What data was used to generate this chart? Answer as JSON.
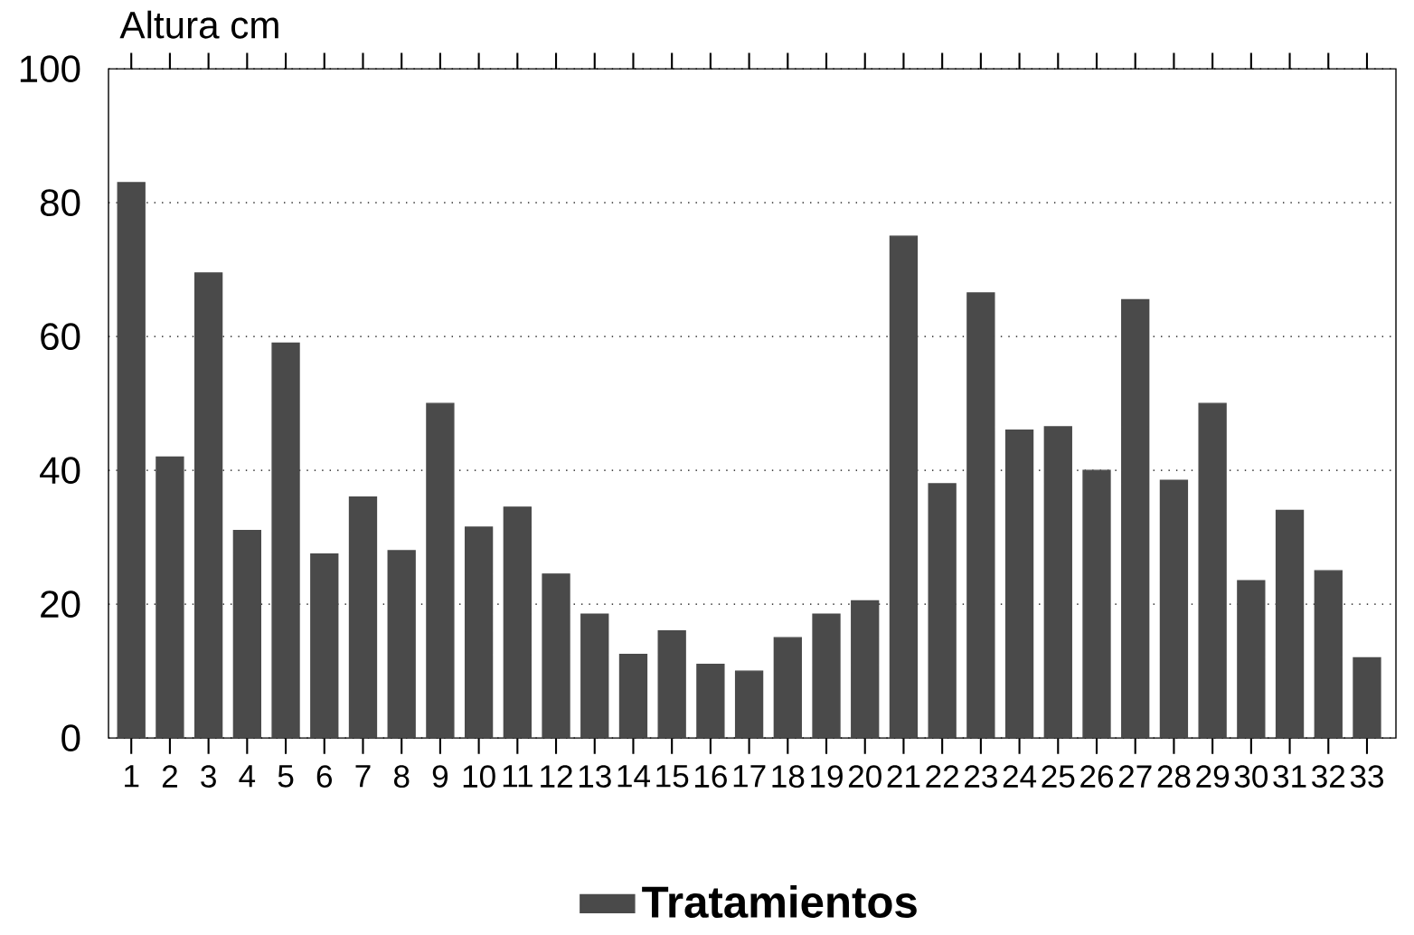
{
  "chart_data": {
    "type": "bar",
    "ylabel": "Altura cm",
    "categories": [
      "1",
      "2",
      "3",
      "4",
      "5",
      "6",
      "7",
      "8",
      "9",
      "10",
      "11",
      "12",
      "13",
      "14",
      "15",
      "16",
      "17",
      "18",
      "19",
      "20",
      "21",
      "22",
      "23",
      "24",
      "25",
      "26",
      "27",
      "28",
      "29",
      "30",
      "31",
      "32",
      "33"
    ],
    "series": [
      {
        "name": "Tratamientos",
        "color": "#4a4a4a",
        "values": [
          83,
          42,
          69.5,
          31,
          59,
          27.5,
          36,
          28,
          50,
          31.5,
          34.5,
          24.5,
          18.5,
          12.5,
          16,
          11,
          10,
          15,
          18.5,
          20.5,
          75,
          38,
          66.5,
          46,
          46.5,
          40,
          65.5,
          38.5,
          50,
          23.5,
          34,
          25,
          12
        ]
      }
    ],
    "ylim": [
      0,
      100
    ],
    "yticks": [
      0,
      20,
      40,
      60,
      80,
      100
    ],
    "grid": "y",
    "legend": "bottom"
  }
}
